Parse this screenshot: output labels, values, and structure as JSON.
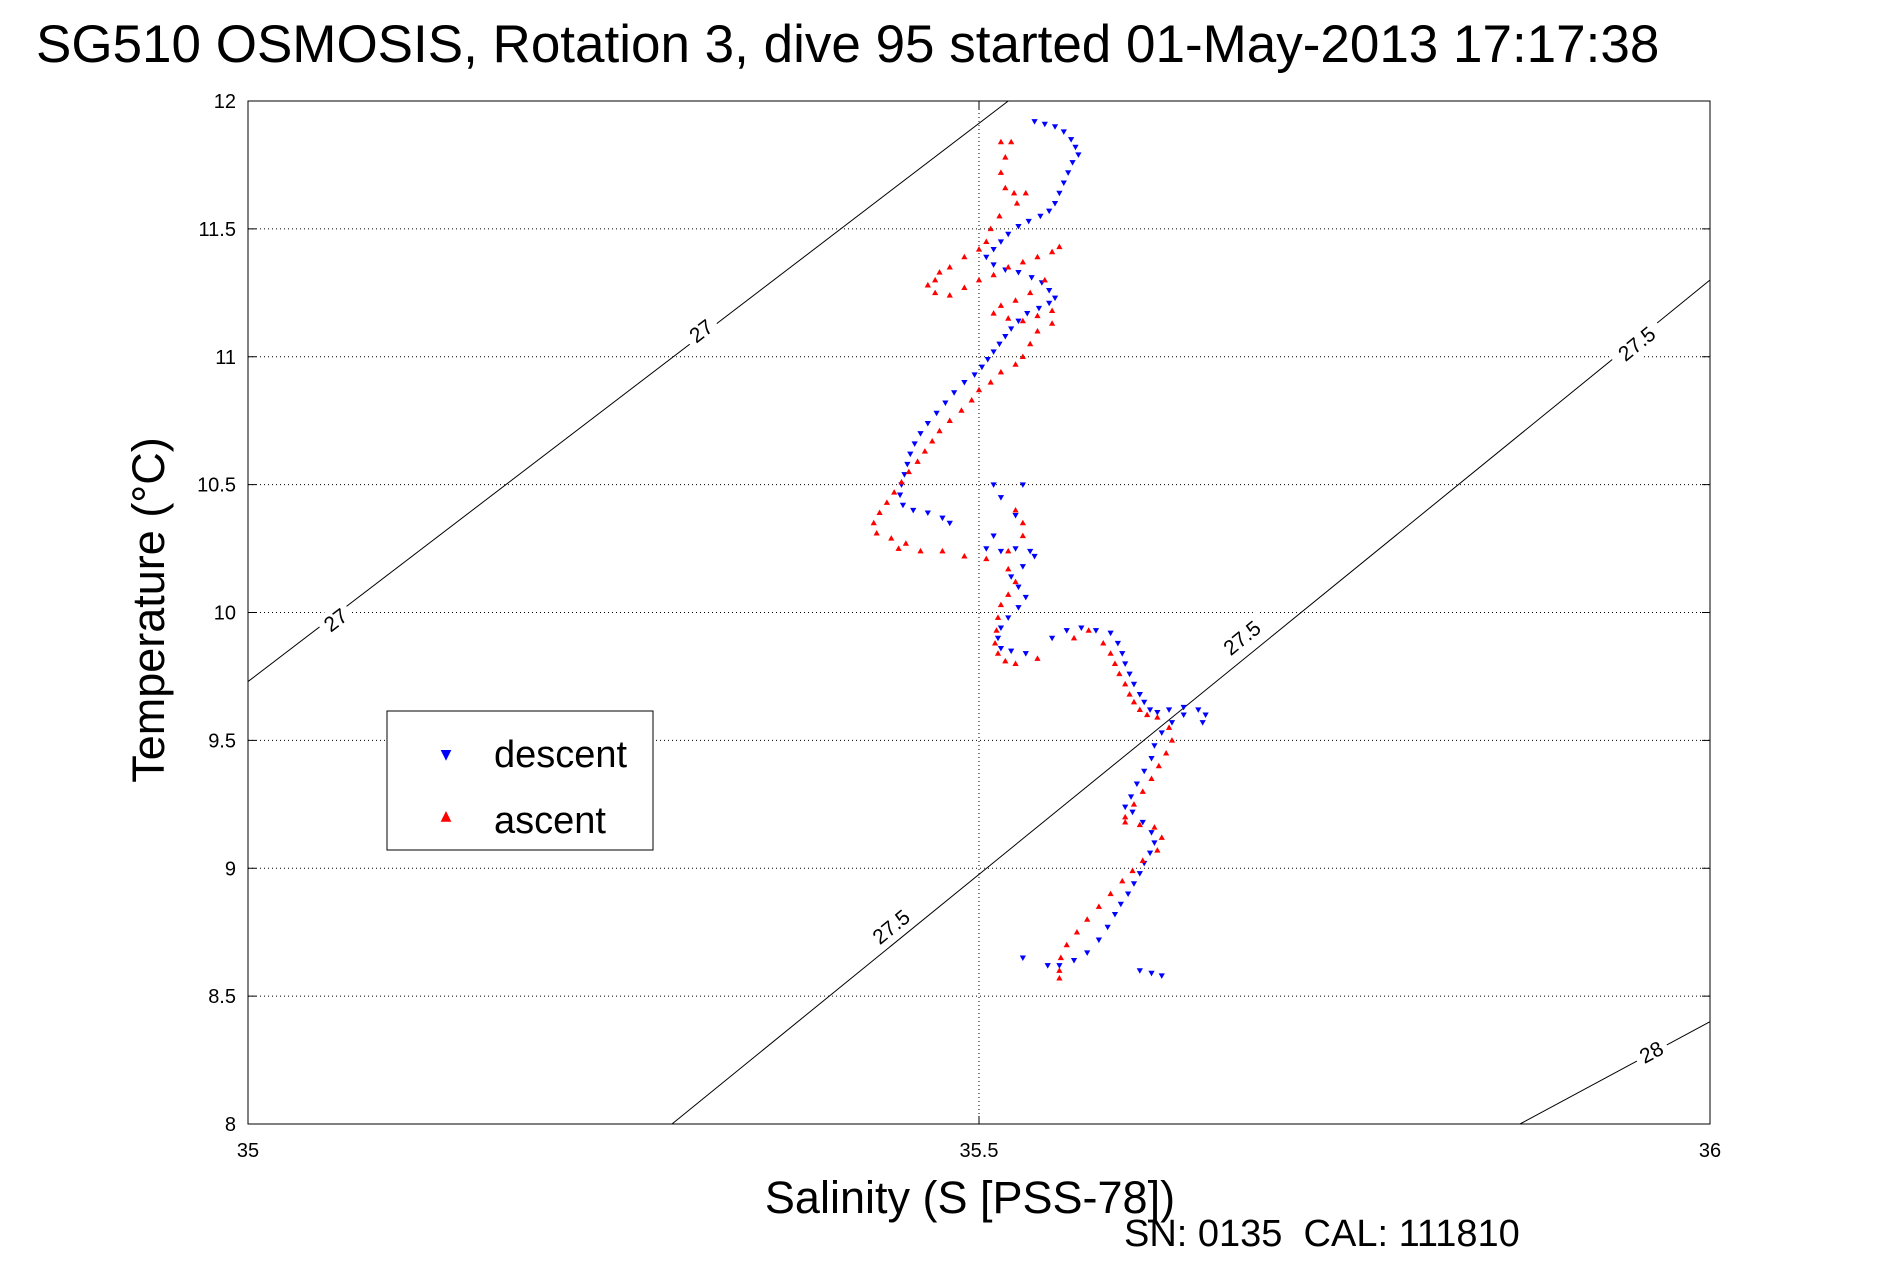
{
  "chart_data": {
    "type": "scatter",
    "title": "SG510 OSMOSIS, Rotation 3, dive 95 started 01-May-2013 17:17:38",
    "xlabel": "Salinity (S [PSS-78])",
    "ylabel": "Temperature (°C)",
    "xlim": [
      35,
      36
    ],
    "ylim": [
      8,
      12
    ],
    "xticks": [
      35,
      35.5,
      36
    ],
    "xtick_labels": [
      "35",
      "35.5",
      "36"
    ],
    "yticks": [
      8,
      8.5,
      9,
      9.5,
      10,
      10.5,
      11,
      11.5,
      12
    ],
    "ytick_labels": [
      "8",
      "8.5",
      "9",
      "9.5",
      "10",
      "10.5",
      "11",
      "11.5",
      "12"
    ],
    "grid": true,
    "legend_position": "left-middle",
    "footer": "SN: 0135  CAL: 111810",
    "density_contours": [
      {
        "label": "27",
        "s_start": 35.0,
        "t_start": 9.73,
        "s_end": 35.52,
        "t_end": 12.0,
        "labels_at": [
          [
            35.06,
            9.97
          ],
          [
            35.31,
            11.1
          ]
        ]
      },
      {
        "label": "27.5",
        "s_start": 35.29,
        "t_start": 8.0,
        "s_end": 36.0,
        "t_end": 11.3,
        "labels_at": [
          [
            35.44,
            8.77
          ],
          [
            35.68,
            9.9
          ],
          [
            35.95,
            11.05
          ]
        ]
      },
      {
        "label": "28",
        "s_start": 35.87,
        "t_start": 8.0,
        "s_end": 36.0,
        "t_end": 8.4,
        "labels_at": [
          [
            35.96,
            8.28
          ]
        ]
      }
    ],
    "series": [
      {
        "name": "descent",
        "color": "#0000ff",
        "marker": "triangle-down",
        "points": [
          [
            35.538,
            11.92
          ],
          [
            35.545,
            11.91
          ],
          [
            35.552,
            11.9
          ],
          [
            35.558,
            11.88
          ],
          [
            35.563,
            11.85
          ],
          [
            35.566,
            11.82
          ],
          [
            35.568,
            11.79
          ],
          [
            35.564,
            11.76
          ],
          [
            35.561,
            11.72
          ],
          [
            35.558,
            11.68
          ],
          [
            35.555,
            11.64
          ],
          [
            35.552,
            11.6
          ],
          [
            35.548,
            11.57
          ],
          [
            35.542,
            11.55
          ],
          [
            35.534,
            11.53
          ],
          [
            35.527,
            11.51
          ],
          [
            35.52,
            11.48
          ],
          [
            35.515,
            11.45
          ],
          [
            35.51,
            11.42
          ],
          [
            35.505,
            11.39
          ],
          [
            35.51,
            11.36
          ],
          [
            35.518,
            11.34
          ],
          [
            35.527,
            11.33
          ],
          [
            35.536,
            11.31
          ],
          [
            35.543,
            11.29
          ],
          [
            35.548,
            11.26
          ],
          [
            35.552,
            11.23
          ],
          [
            35.548,
            11.21
          ],
          [
            35.541,
            11.19
          ],
          [
            35.533,
            11.17
          ],
          [
            35.527,
            11.14
          ],
          [
            35.522,
            11.11
          ],
          [
            35.518,
            11.08
          ],
          [
            35.514,
            11.05
          ],
          [
            35.51,
            11.02
          ],
          [
            35.506,
            10.99
          ],
          [
            35.502,
            10.96
          ],
          [
            35.497,
            10.93
          ],
          [
            35.49,
            10.9
          ],
          [
            35.483,
            10.86
          ],
          [
            35.477,
            10.82
          ],
          [
            35.471,
            10.78
          ],
          [
            35.465,
            10.74
          ],
          [
            35.46,
            10.7
          ],
          [
            35.456,
            10.66
          ],
          [
            35.453,
            10.62
          ],
          [
            35.451,
            10.58
          ],
          [
            35.449,
            10.54
          ],
          [
            35.447,
            10.5
          ],
          [
            35.446,
            10.46
          ],
          [
            35.448,
            10.42
          ],
          [
            35.455,
            10.4
          ],
          [
            35.465,
            10.39
          ],
          [
            35.475,
            10.37
          ],
          [
            35.48,
            10.35
          ],
          [
            35.51,
            10.5
          ],
          [
            35.515,
            10.45
          ],
          [
            35.53,
            10.5
          ],
          [
            35.525,
            10.38
          ],
          [
            35.51,
            10.3
          ],
          [
            35.505,
            10.25
          ],
          [
            35.515,
            10.24
          ],
          [
            35.525,
            10.25
          ],
          [
            35.535,
            10.24
          ],
          [
            35.538,
            10.22
          ],
          [
            35.53,
            10.18
          ],
          [
            35.522,
            10.14
          ],
          [
            35.527,
            10.1
          ],
          [
            35.532,
            10.06
          ],
          [
            35.527,
            10.02
          ],
          [
            35.52,
            9.98
          ],
          [
            35.515,
            9.94
          ],
          [
            35.513,
            9.9
          ],
          [
            35.515,
            9.86
          ],
          [
            35.522,
            9.85
          ],
          [
            35.532,
            9.84
          ],
          [
            35.55,
            9.9
          ],
          [
            35.56,
            9.93
          ],
          [
            35.57,
            9.94
          ],
          [
            35.58,
            9.93
          ],
          [
            35.59,
            9.92
          ],
          [
            35.595,
            9.88
          ],
          [
            35.598,
            9.84
          ],
          [
            35.6,
            9.8
          ],
          [
            35.603,
            9.76
          ],
          [
            35.606,
            9.72
          ],
          [
            35.61,
            9.68
          ],
          [
            35.613,
            9.65
          ],
          [
            35.617,
            9.62
          ],
          [
            35.622,
            9.61
          ],
          [
            35.63,
            9.62
          ],
          [
            35.64,
            9.63
          ],
          [
            35.65,
            9.62
          ],
          [
            35.655,
            9.6
          ],
          [
            35.653,
            9.57
          ],
          [
            35.64,
            9.6
          ],
          [
            35.632,
            9.57
          ],
          [
            35.625,
            9.53
          ],
          [
            35.62,
            9.48
          ],
          [
            35.618,
            9.43
          ],
          [
            35.613,
            9.38
          ],
          [
            35.608,
            9.33
          ],
          [
            35.604,
            9.28
          ],
          [
            35.6,
            9.24
          ],
          [
            35.605,
            9.22
          ],
          [
            35.612,
            9.18
          ],
          [
            35.618,
            9.14
          ],
          [
            35.62,
            9.1
          ],
          [
            35.617,
            9.06
          ],
          [
            35.613,
            9.02
          ],
          [
            35.61,
            8.98
          ],
          [
            35.606,
            8.94
          ],
          [
            35.602,
            8.9
          ],
          [
            35.597,
            8.86
          ],
          [
            35.593,
            8.82
          ],
          [
            35.588,
            8.77
          ],
          [
            35.582,
            8.72
          ],
          [
            35.574,
            8.67
          ],
          [
            35.565,
            8.64
          ],
          [
            35.555,
            8.62
          ],
          [
            35.547,
            8.62
          ],
          [
            35.61,
            8.6
          ],
          [
            35.618,
            8.59
          ],
          [
            35.625,
            8.58
          ],
          [
            35.53,
            8.65
          ]
        ]
      },
      {
        "name": "ascent",
        "color": "#ff0000",
        "marker": "triangle-up",
        "points": [
          [
            35.515,
            11.84
          ],
          [
            35.522,
            11.84
          ],
          [
            35.518,
            11.78
          ],
          [
            35.515,
            11.72
          ],
          [
            35.518,
            11.66
          ],
          [
            35.524,
            11.64
          ],
          [
            35.532,
            11.64
          ],
          [
            35.526,
            11.6
          ],
          [
            35.514,
            11.55
          ],
          [
            35.508,
            11.5
          ],
          [
            35.505,
            11.45
          ],
          [
            35.5,
            11.42
          ],
          [
            35.49,
            11.39
          ],
          [
            35.48,
            11.35
          ],
          [
            35.473,
            11.33
          ],
          [
            35.47,
            11.3
          ],
          [
            35.465,
            11.28
          ],
          [
            35.47,
            11.25
          ],
          [
            35.48,
            11.24
          ],
          [
            35.49,
            11.27
          ],
          [
            35.5,
            11.3
          ],
          [
            35.51,
            11.32
          ],
          [
            35.52,
            11.35
          ],
          [
            35.53,
            11.37
          ],
          [
            35.54,
            11.39
          ],
          [
            35.55,
            11.41
          ],
          [
            35.555,
            11.43
          ],
          [
            35.545,
            11.3
          ],
          [
            35.535,
            11.25
          ],
          [
            35.525,
            11.22
          ],
          [
            35.515,
            11.2
          ],
          [
            35.51,
            11.17
          ],
          [
            35.52,
            11.15
          ],
          [
            35.53,
            11.14
          ],
          [
            35.54,
            11.16
          ],
          [
            35.55,
            11.18
          ],
          [
            35.55,
            11.13
          ],
          [
            35.54,
            11.1
          ],
          [
            35.535,
            11.05
          ],
          [
            35.53,
            11.0
          ],
          [
            35.525,
            10.97
          ],
          [
            35.515,
            10.94
          ],
          [
            35.508,
            10.9
          ],
          [
            35.5,
            10.87
          ],
          [
            35.495,
            10.83
          ],
          [
            35.488,
            10.79
          ],
          [
            35.48,
            10.75
          ],
          [
            35.473,
            10.71
          ],
          [
            35.468,
            10.67
          ],
          [
            35.463,
            10.63
          ],
          [
            35.458,
            10.59
          ],
          [
            35.452,
            10.55
          ],
          [
            35.447,
            10.51
          ],
          [
            35.442,
            10.47
          ],
          [
            35.437,
            10.43
          ],
          [
            35.432,
            10.39
          ],
          [
            35.428,
            10.35
          ],
          [
            35.43,
            10.31
          ],
          [
            35.44,
            10.29
          ],
          [
            35.45,
            10.27
          ],
          [
            35.445,
            10.25
          ],
          [
            35.46,
            10.24
          ],
          [
            35.475,
            10.24
          ],
          [
            35.49,
            10.22
          ],
          [
            35.505,
            10.21
          ],
          [
            35.52,
            10.24
          ],
          [
            35.53,
            10.3
          ],
          [
            35.53,
            10.35
          ],
          [
            35.525,
            10.4
          ],
          [
            35.52,
            10.17
          ],
          [
            35.525,
            10.12
          ],
          [
            35.52,
            10.07
          ],
          [
            35.515,
            10.03
          ],
          [
            35.513,
            9.98
          ],
          [
            35.512,
            9.93
          ],
          [
            35.511,
            9.88
          ],
          [
            35.513,
            9.84
          ],
          [
            35.518,
            9.81
          ],
          [
            35.525,
            9.8
          ],
          [
            35.54,
            9.82
          ],
          [
            35.565,
            9.9
          ],
          [
            35.575,
            9.93
          ],
          [
            35.585,
            9.88
          ],
          [
            35.59,
            9.84
          ],
          [
            35.593,
            9.8
          ],
          [
            35.596,
            9.76
          ],
          [
            35.6,
            9.72
          ],
          [
            35.603,
            9.68
          ],
          [
            35.606,
            9.65
          ],
          [
            35.61,
            9.62
          ],
          [
            35.615,
            9.6
          ],
          [
            35.622,
            9.59
          ],
          [
            35.63,
            9.55
          ],
          [
            35.632,
            9.5
          ],
          [
            35.628,
            9.45
          ],
          [
            35.623,
            9.4
          ],
          [
            35.618,
            9.35
          ],
          [
            35.612,
            9.3
          ],
          [
            35.606,
            9.25
          ],
          [
            35.6,
            9.2
          ],
          [
            35.6,
            9.18
          ],
          [
            35.61,
            9.17
          ],
          [
            35.62,
            9.16
          ],
          [
            35.625,
            9.12
          ],
          [
            35.622,
            9.07
          ],
          [
            35.612,
            9.03
          ],
          [
            35.605,
            8.99
          ],
          [
            35.598,
            8.95
          ],
          [
            35.59,
            8.9
          ],
          [
            35.582,
            8.85
          ],
          [
            35.574,
            8.8
          ],
          [
            35.567,
            8.75
          ],
          [
            35.56,
            8.7
          ],
          [
            35.556,
            8.65
          ],
          [
            35.555,
            8.6
          ],
          [
            35.555,
            8.57
          ]
        ]
      }
    ]
  }
}
